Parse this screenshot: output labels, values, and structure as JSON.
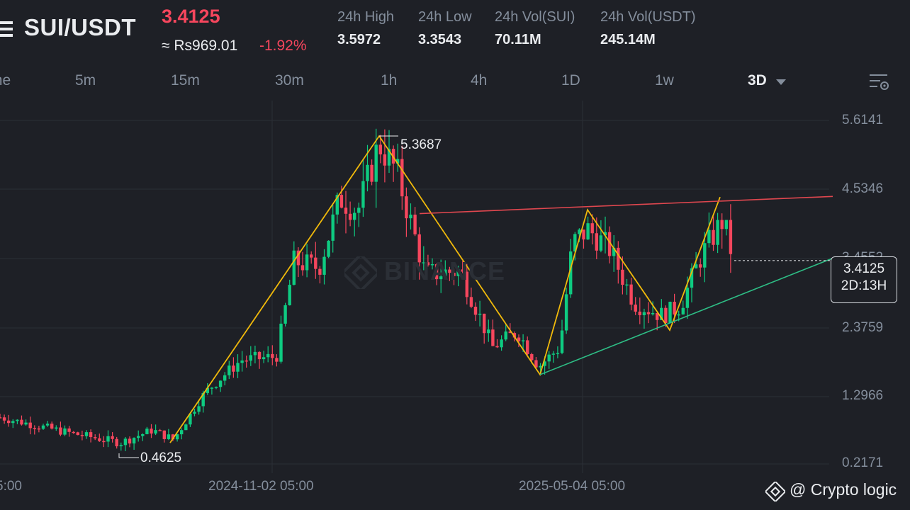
{
  "pair": "SUI/USDT",
  "price": "3.4125",
  "fiat_price": "≈ Rs969.01",
  "change": "-1.92%",
  "stats": [
    {
      "label": "24h High",
      "value": "3.5972"
    },
    {
      "label": "24h Low",
      "value": "3.3543"
    },
    {
      "label": "24h Vol(SUI)",
      "value": "70.11M"
    },
    {
      "label": "24h Vol(USDT)",
      "value": "245.14M"
    }
  ],
  "tabs": [
    "me",
    "5m",
    "15m",
    "30m",
    "1h",
    "4h",
    "1D",
    "1w",
    "3D"
  ],
  "active_tab": "3D",
  "watermark": "BINANCE",
  "credit": "@ Crypto logic",
  "colors": {
    "up": "#0ecb81",
    "down": "#f6465d",
    "zigzag": "#f0b90b",
    "resistance": "#e0474f",
    "support": "#2ebd85"
  },
  "chart_data": {
    "type": "candlestick",
    "y_axis_ticks": [
      "5.6141",
      "4.5346",
      "3.4552",
      "2.3759",
      "1.2966",
      "0.2171"
    ],
    "x_axis_ticks": [
      "5:00",
      "2024-11-02 05:00",
      "2025-05-04 05:00"
    ],
    "current_price": "3.4125",
    "countdown": "2D:13H",
    "annotations": {
      "high": "5.3687",
      "low": "0.4625"
    },
    "ylim": [
      0.2171,
      5.6141
    ],
    "zigzag": [
      0.55,
      5.3687,
      1.62,
      4.21,
      2.32,
      4.41
    ],
    "resistance_line": [
      4.15,
      4.42
    ],
    "support_line": [
      1.62,
      3.45
    ]
  }
}
